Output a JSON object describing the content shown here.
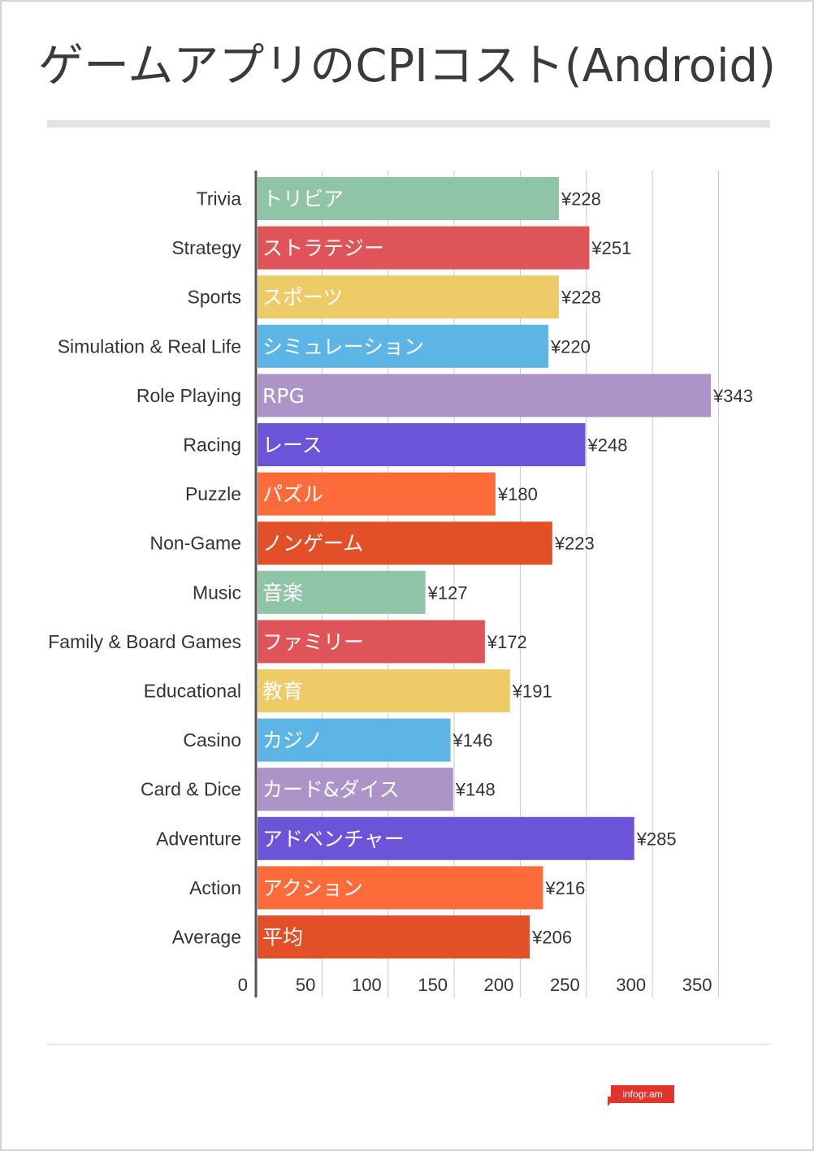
{
  "title": "ゲームアプリのCPIコスト(Android)",
  "brand": {
    "text": "infogr.am",
    "color": "#e2332c"
  },
  "chart_data": {
    "type": "bar",
    "orientation": "horizontal",
    "categories": [
      "Trivia",
      "Strategy",
      "Sports",
      "Simulation & Real Life",
      "Role Playing",
      "Racing",
      "Puzzle",
      "Non-Game",
      "Music",
      "Family & Board Games",
      "Educational",
      "Casino",
      "Card & Dice",
      "Adventure",
      "Action",
      "Average"
    ],
    "bar_labels": [
      "トリビア",
      "ストラテジー",
      "スポーツ",
      "シミュレーション",
      "RPG",
      "レース",
      "パズル",
      "ノンゲーム",
      "音楽",
      "ファミリー",
      "教育",
      "カジノ",
      "カード&ダイス",
      "アドベンチャー",
      "アクション",
      "平均"
    ],
    "values": [
      228,
      251,
      228,
      220,
      343,
      248,
      180,
      223,
      127,
      172,
      191,
      146,
      148,
      285,
      216,
      206
    ],
    "value_labels": [
      "¥228",
      "¥251",
      "¥228",
      "¥220",
      "¥343",
      "¥248",
      "¥180",
      "¥223",
      "¥127",
      "¥172",
      "¥191",
      "¥146",
      "¥148",
      "¥285",
      "¥216",
      "¥206"
    ],
    "colors": [
      "#8fc4a6",
      "#de5459",
      "#edcb66",
      "#5cb5e4",
      "#ac93c8",
      "#6b54d8",
      "#fd6b3a",
      "#e34f26",
      "#8fc4a6",
      "#de5459",
      "#edcb66",
      "#5cb5e4",
      "#ac93c8",
      "#6b54d8",
      "#fd6b3a",
      "#e34f26"
    ],
    "xticks": [
      0,
      50,
      100,
      150,
      200,
      250,
      300,
      350
    ],
    "xtick_labels": [
      "0",
      "50",
      "100",
      "150",
      "200",
      "250",
      "300",
      "350"
    ],
    "xlim": [
      0,
      350
    ],
    "grid": true,
    "gridline_color": "#c8c8c8",
    "axis_color": "#555555"
  }
}
